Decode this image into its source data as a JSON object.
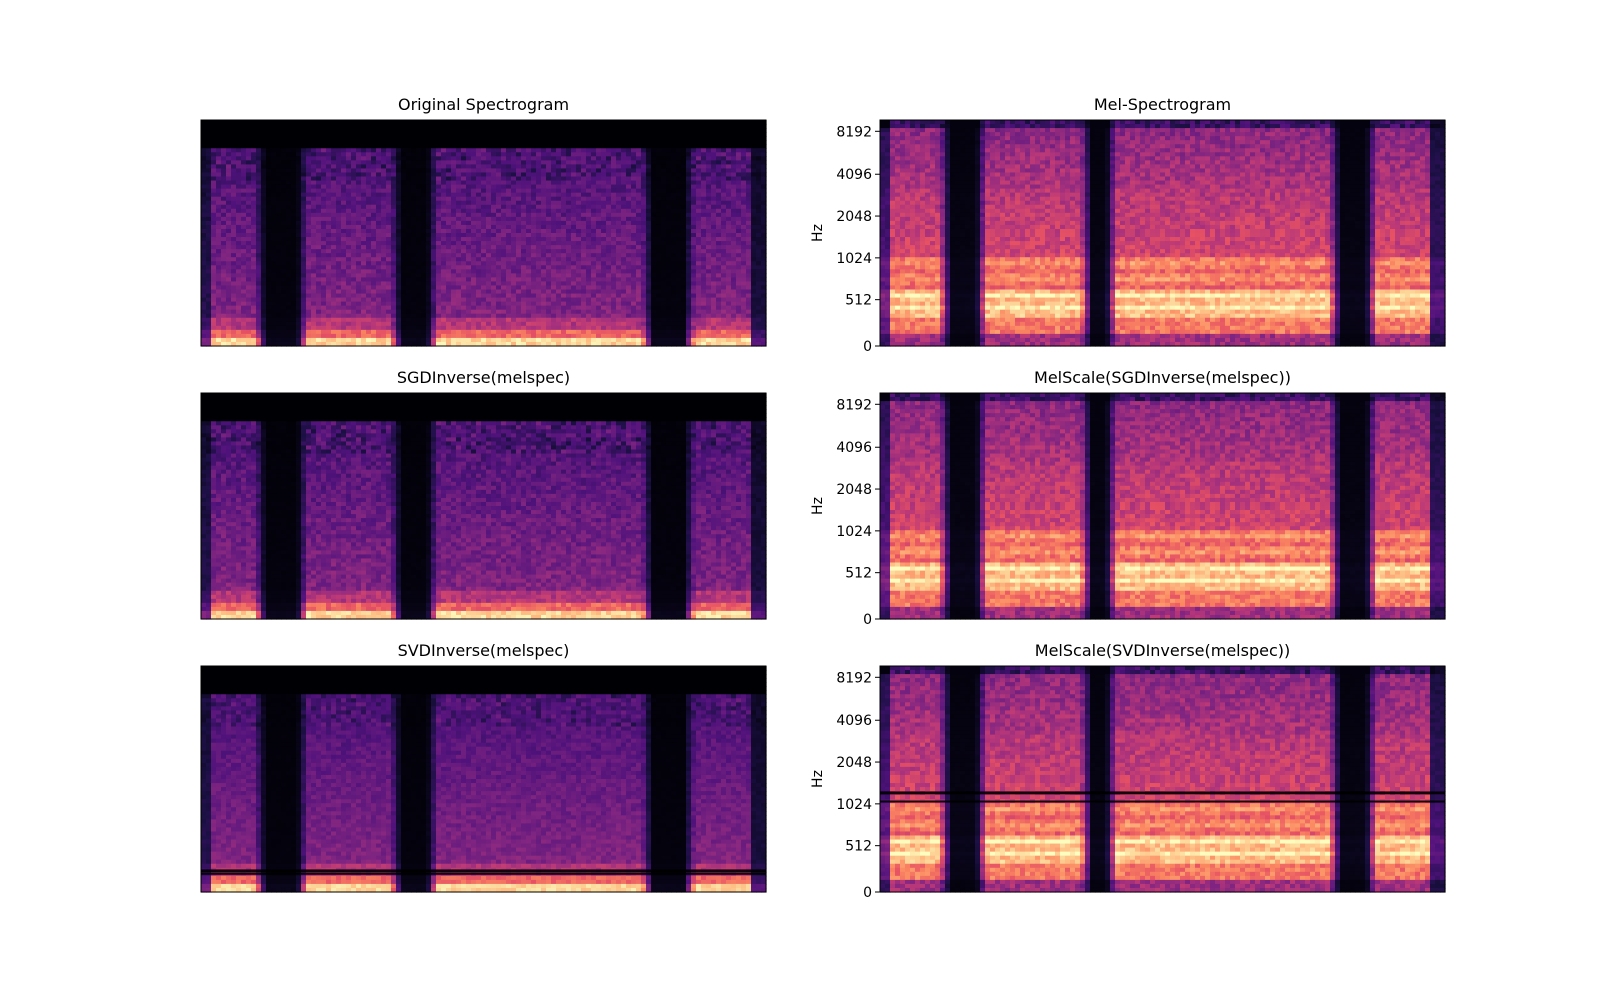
{
  "chart_data": [
    {
      "type": "heatmap",
      "title": "Original Spectrogram",
      "xlabel": "",
      "ylabel": "",
      "yticks": [],
      "colormap": "magma",
      "silent_segments": [
        [
          0.115,
          0.17
        ],
        [
          0.355,
          0.4
        ],
        [
          0.8,
          0.855
        ]
      ],
      "variant": "linear",
      "artifact_bands": []
    },
    {
      "type": "heatmap",
      "title": "Mel-Spectrogram",
      "xlabel": "",
      "ylabel": "Hz",
      "yticks": [
        "8192",
        "4096",
        "2048",
        "1024",
        "512",
        "0"
      ],
      "colormap": "magma",
      "silent_segments": [
        [
          0.125,
          0.17
        ],
        [
          0.375,
          0.4
        ],
        [
          0.815,
          0.86
        ]
      ],
      "variant": "mel",
      "artifact_bands": []
    },
    {
      "type": "heatmap",
      "title": "SGDInverse(melspec)",
      "xlabel": "",
      "ylabel": "",
      "yticks": [],
      "colormap": "magma",
      "silent_segments": [
        [
          0.115,
          0.17
        ],
        [
          0.355,
          0.4
        ],
        [
          0.8,
          0.855
        ]
      ],
      "variant": "linear",
      "artifact_bands": []
    },
    {
      "type": "heatmap",
      "title": "MelScale(SGDInverse(melspec))",
      "xlabel": "",
      "ylabel": "Hz",
      "yticks": [
        "8192",
        "4096",
        "2048",
        "1024",
        "512",
        "0"
      ],
      "colormap": "magma",
      "silent_segments": [
        [
          0.125,
          0.17
        ],
        [
          0.375,
          0.4
        ],
        [
          0.815,
          0.86
        ]
      ],
      "variant": "mel",
      "artifact_bands": []
    },
    {
      "type": "heatmap",
      "title": "SVDInverse(melspec)",
      "xlabel": "",
      "ylabel": "",
      "yticks": [],
      "colormap": "magma",
      "silent_segments": [
        [
          0.115,
          0.17
        ],
        [
          0.355,
          0.4
        ],
        [
          0.8,
          0.855
        ]
      ],
      "variant": "linear",
      "artifact_bands": [
        0.1,
        0.085
      ]
    },
    {
      "type": "heatmap",
      "title": "MelScale(SVDInverse(melspec))",
      "xlabel": "",
      "ylabel": "Hz",
      "yticks": [
        "8192",
        "4096",
        "2048",
        "1024",
        "512",
        "0"
      ],
      "colormap": "magma",
      "silent_segments": [
        [
          0.125,
          0.17
        ],
        [
          0.375,
          0.4
        ],
        [
          0.815,
          0.86
        ]
      ],
      "variant": "mel",
      "artifact_bands": [
        0.445,
        0.405
      ]
    }
  ]
}
